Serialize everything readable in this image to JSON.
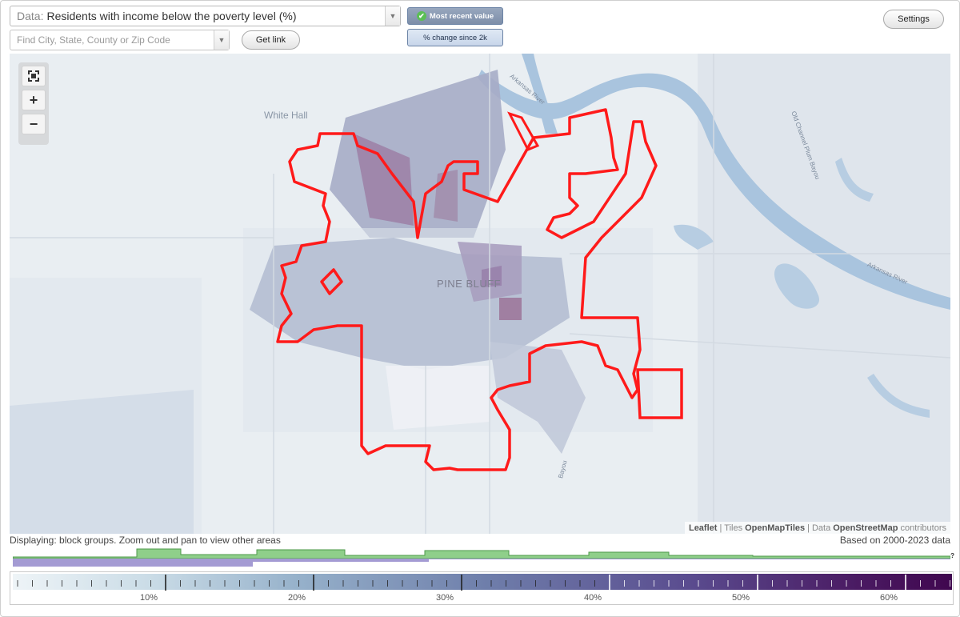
{
  "header": {
    "data_label": "Data:",
    "data_value": "Residents with income below the poverty level (%)",
    "search_placeholder": "Find City, State, County or Zip Code",
    "get_link": "Get link",
    "settings": "Settings",
    "mode_recent": "Most recent value",
    "mode_change": "% change since 2k"
  },
  "map": {
    "labels": {
      "white_hall": "White Hall",
      "pine_bluff": "PINE BLUFF",
      "arkansas_river": "Arkansas River",
      "old_channel": "Old Channel Plum Bayou",
      "bayou": "Bayou",
      "bayou_road": "Bayou"
    },
    "attribution": {
      "leaflet": "Leaflet",
      "sep1": "|",
      "tiles": "Tiles",
      "omt": "OpenMapTiles",
      "sep2": "|",
      "data": "Data",
      "osm": "OpenStreetMap",
      "contributors": "contributors"
    },
    "colors": {
      "boundary": "#ff0000",
      "water": "#a9c4de",
      "land": "#e7ecf0"
    }
  },
  "status": {
    "displaying": "Displaying: block groups. Zoom out and pan to view other areas",
    "based_on": "Based on 2000-2023 data",
    "question": "?"
  },
  "scale": {
    "labels": [
      "10%",
      "20%",
      "30%",
      "40%",
      "50%",
      "60%"
    ]
  }
}
